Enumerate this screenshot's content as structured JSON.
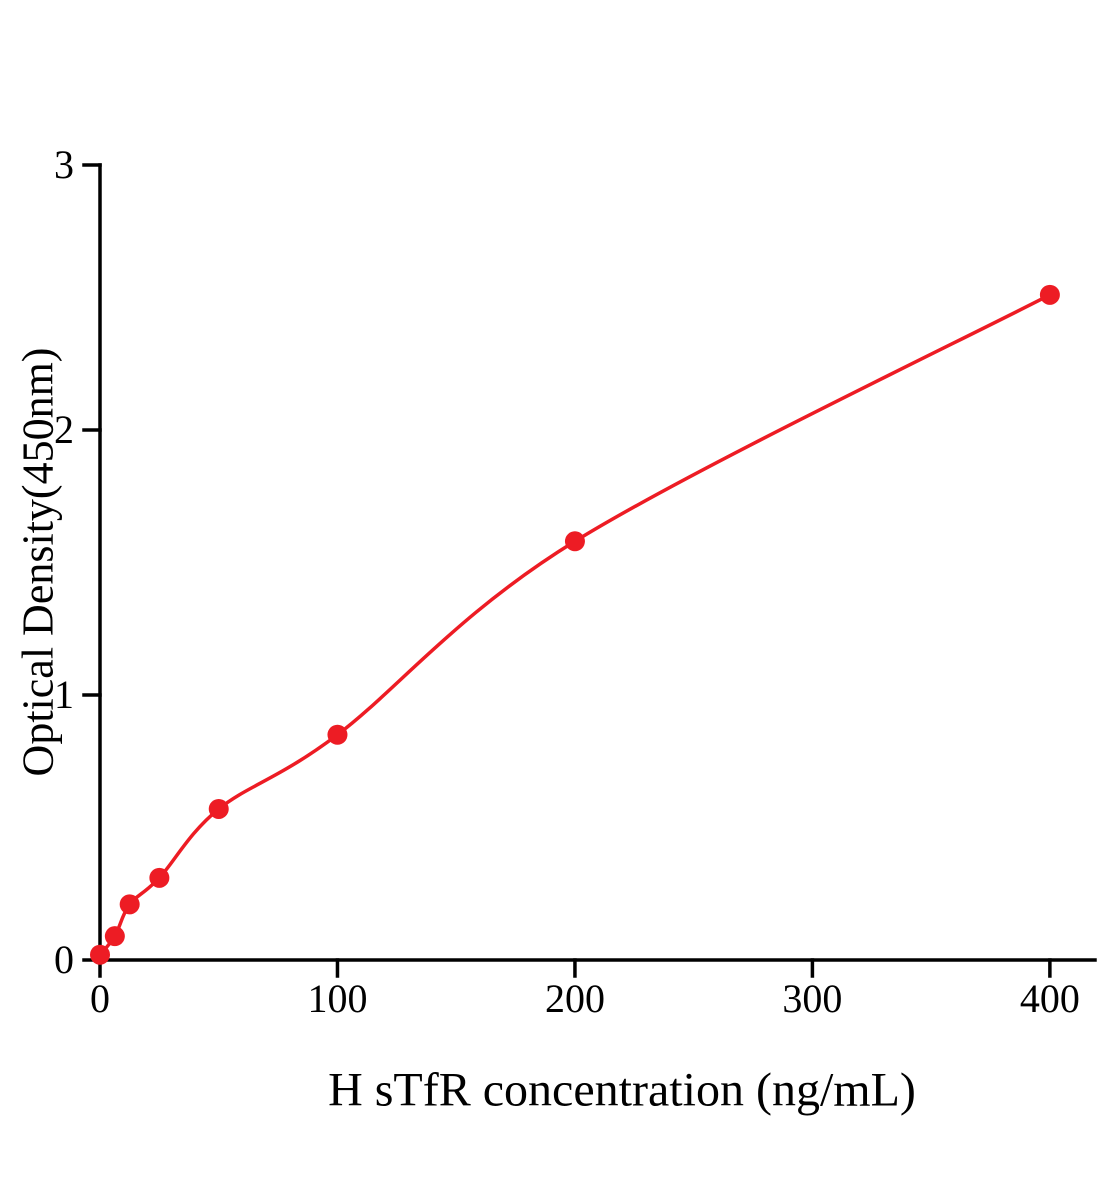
{
  "figure": {
    "background": "#ffffff"
  },
  "chart_data": {
    "type": "scatter",
    "title": "",
    "xlabel": "H sTfR concentration (ng/mL)",
    "ylabel": "Optical Density(450nm)",
    "x": [
      0,
      6.25,
      12.5,
      25,
      50,
      100,
      200,
      400
    ],
    "y": [
      0.02,
      0.09,
      0.21,
      0.31,
      0.57,
      0.85,
      1.58,
      2.51
    ],
    "xlim": [
      0,
      419
    ],
    "ylim": [
      0,
      3
    ],
    "xticks": [
      0,
      100,
      200,
      300,
      400
    ],
    "yticks": [
      0,
      1,
      2,
      3
    ],
    "grid": false,
    "legend": "none",
    "marker_color": "#ed1c24",
    "line_color": "#ed1c24",
    "axis_color": "#000000",
    "curve_style": "smooth fitted curve through points",
    "marker_radius": 10
  }
}
